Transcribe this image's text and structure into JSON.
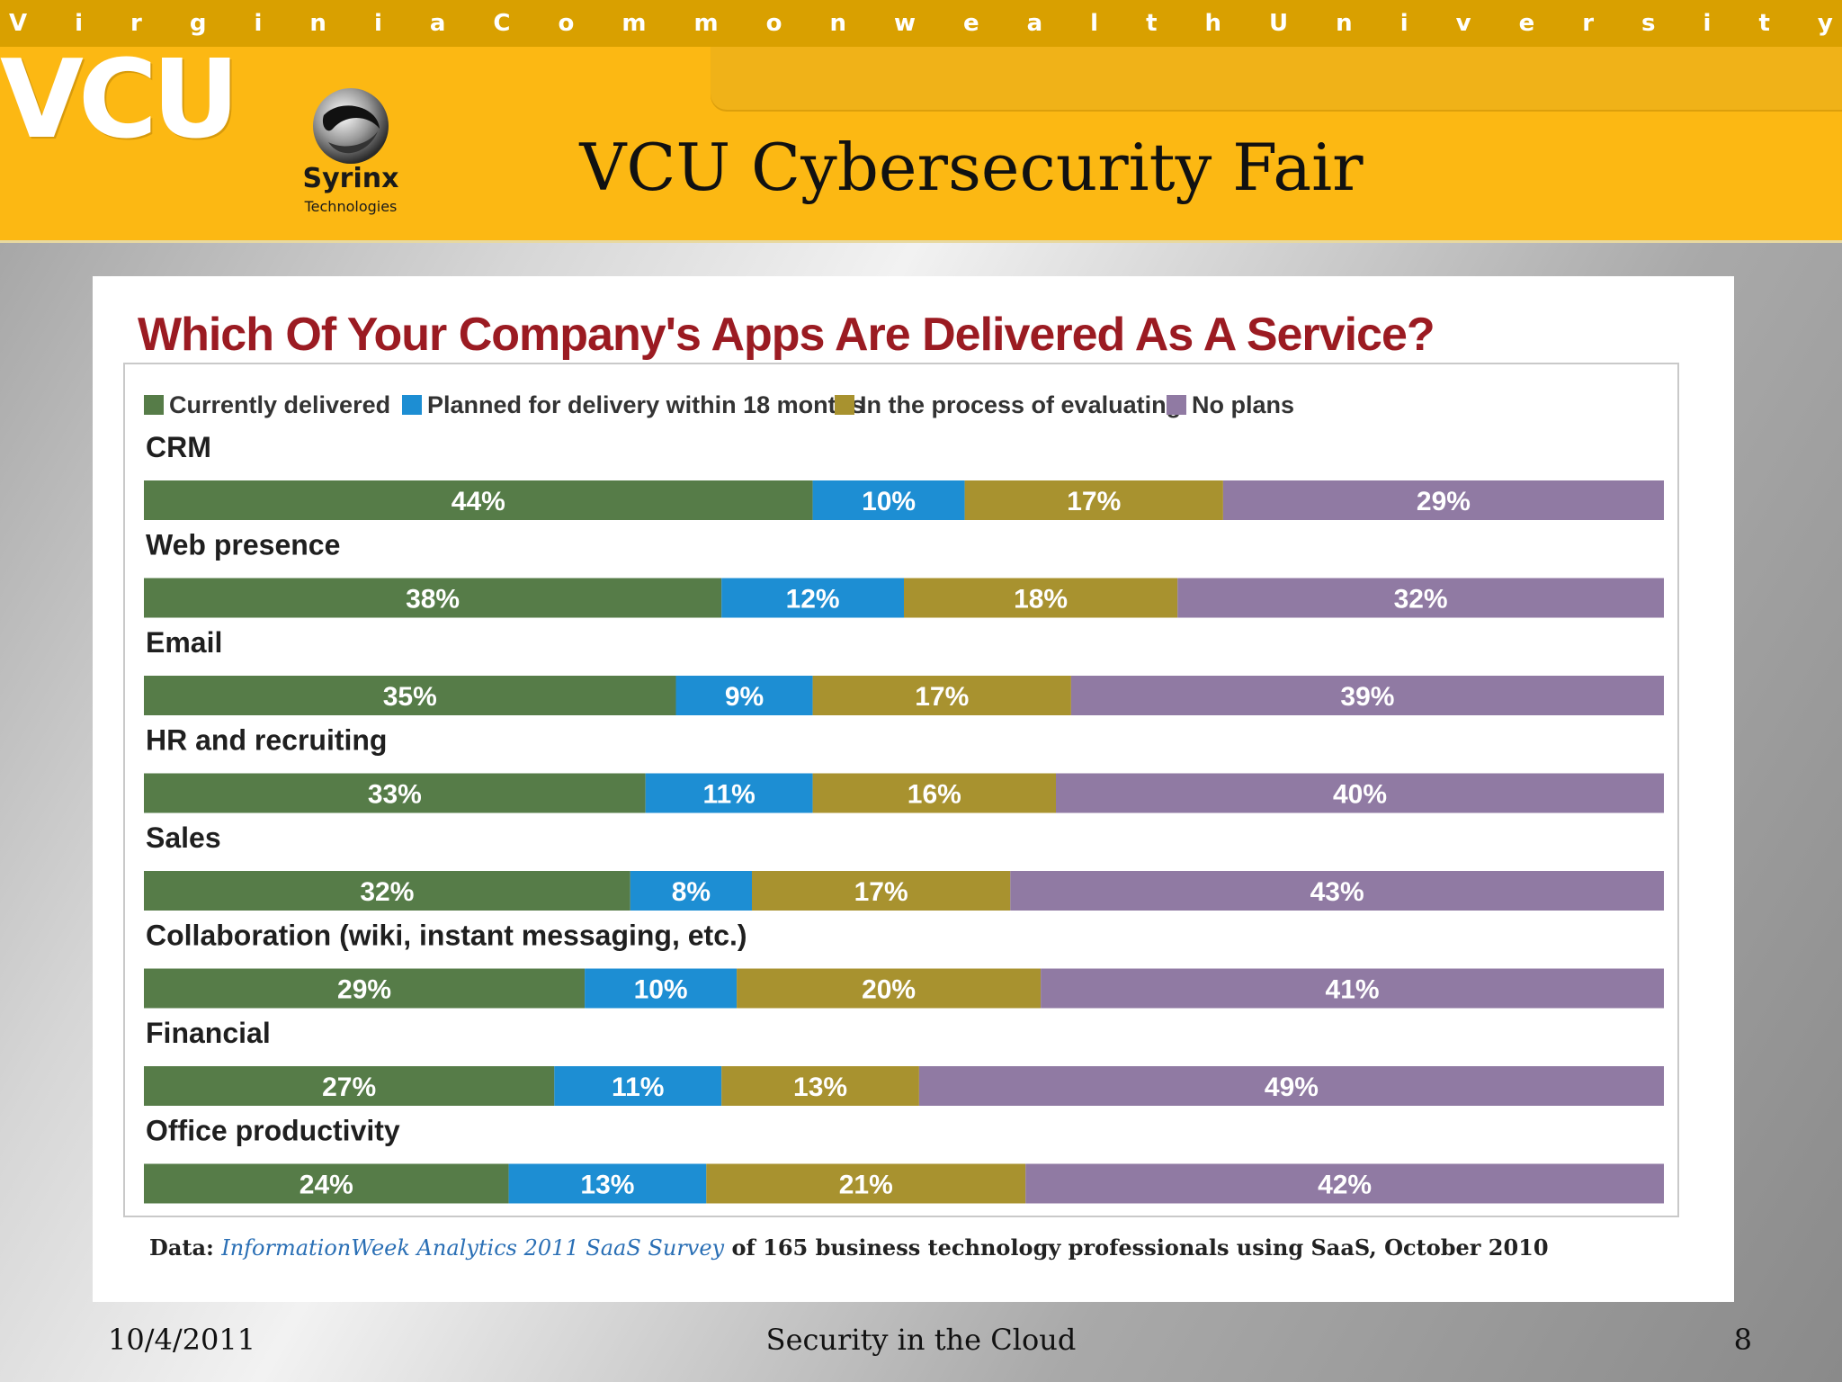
{
  "banner": {
    "letters": [
      "V",
      "i",
      "r",
      "g",
      "i",
      "n",
      "i",
      "a",
      "C",
      "o",
      "m",
      "m",
      "o",
      "n",
      "w",
      "e",
      "a",
      "l",
      "t",
      "h",
      "U",
      "n",
      "i",
      "v",
      "e",
      "r",
      "s",
      "i",
      "t",
      "y"
    ]
  },
  "header": {
    "vcu_logo": "VCU",
    "partner_name": "Syrinx",
    "partner_sub": "Technologies",
    "title": "VCU Cybersecurity Fair"
  },
  "chart_data": {
    "type": "bar",
    "orientation": "horizontal",
    "stacked": true,
    "title": "Which Of Your Company's Apps Are Delivered As A Service?",
    "categories": [
      "CRM",
      "Web presence",
      "Email",
      "HR and recruiting",
      "Sales",
      "Collaboration (wiki, instant messaging, etc.)",
      "Financial",
      "Office productivity"
    ],
    "series": [
      {
        "name": "Currently delivered",
        "color": "#567c48",
        "values": [
          44,
          38,
          35,
          33,
          32,
          29,
          27,
          24
        ]
      },
      {
        "name": "Planned for delivery within 18 months",
        "color": "#1d8ed3",
        "values": [
          10,
          12,
          9,
          11,
          8,
          10,
          11,
          13
        ]
      },
      {
        "name": "In the process of evaluating",
        "color": "#a8922f",
        "values": [
          17,
          18,
          17,
          16,
          17,
          20,
          13,
          21
        ]
      },
      {
        "name": "No plans",
        "color": "#907aa3",
        "values": [
          29,
          32,
          39,
          40,
          43,
          41,
          49,
          42
        ]
      }
    ],
    "value_suffix": "%",
    "xlim": [
      0,
      100
    ],
    "legend_position": "top"
  },
  "source": {
    "prefix": "Data:",
    "name": "InformationWeek Analytics 2011 SaaS Survey",
    "rest": "of 165 business technology professionals using SaaS, October 2010"
  },
  "footer": {
    "date": "10/4/2011",
    "topic": "Security in the Cloud",
    "page": "8"
  }
}
